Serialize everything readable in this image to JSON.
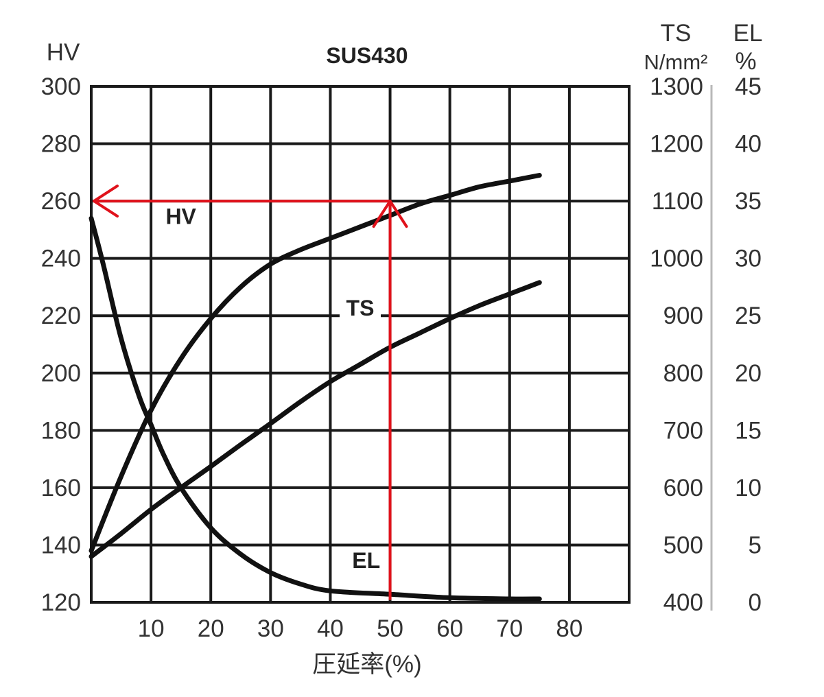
{
  "chart_data": {
    "type": "line",
    "title": "SUS430",
    "xlabel": "圧延率(%)",
    "xlim": [
      0,
      90
    ],
    "x_ticks": [
      10,
      20,
      30,
      40,
      50,
      60,
      70,
      80
    ],
    "y_left": {
      "label": "HV",
      "lim": [
        120,
        300
      ],
      "ticks": [
        120,
        140,
        160,
        180,
        200,
        220,
        240,
        260,
        280,
        300
      ]
    },
    "y_right_1": {
      "label": "TS",
      "unit": "N/mm²",
      "lim": [
        400,
        1300
      ],
      "ticks": [
        400,
        500,
        600,
        700,
        800,
        900,
        1000,
        1100,
        1200,
        1300
      ]
    },
    "y_right_2": {
      "label": "EL",
      "unit": "%",
      "lim": [
        0,
        45
      ],
      "ticks": [
        0,
        5,
        10,
        15,
        20,
        25,
        30,
        35,
        40,
        45
      ]
    },
    "grid": true,
    "series": [
      {
        "name": "HV",
        "axis": "left",
        "x": [
          0,
          5,
          10,
          15,
          20,
          25,
          30,
          35,
          40,
          45,
          50,
          55,
          60,
          65,
          70,
          75
        ],
        "y": [
          138,
          164,
          187,
          205,
          219,
          230,
          238,
          243,
          247,
          251,
          255,
          259,
          262,
          265,
          267,
          269
        ]
      },
      {
        "name": "TS",
        "axis": "right_1",
        "x": [
          0,
          5,
          10,
          15,
          20,
          25,
          30,
          35,
          40,
          45,
          50,
          55,
          60,
          65,
          70,
          75
        ],
        "y": [
          480,
          520,
          562,
          600,
          637,
          675,
          712,
          750,
          785,
          815,
          845,
          870,
          895,
          918,
          938,
          958
        ]
      },
      {
        "name": "EL",
        "axis": "right_2",
        "x": [
          0,
          2,
          5,
          8,
          10,
          12,
          15,
          20,
          25,
          30,
          35,
          40,
          50,
          60,
          70,
          75
        ],
        "y": [
          33.5,
          29.5,
          23,
          18,
          15.5,
          13,
          10,
          6.5,
          4.2,
          2.6,
          1.6,
          1.0,
          0.7,
          0.4,
          0.3,
          0.3
        ]
      }
    ],
    "annotation": {
      "color": "#e0121b",
      "vertical_x": 50,
      "vertical_from_el": 0.3,
      "vertical_to_hv": 260,
      "horizontal_hv": 260,
      "horizontal_from_x": 50,
      "horizontal_to_x": 0
    }
  }
}
